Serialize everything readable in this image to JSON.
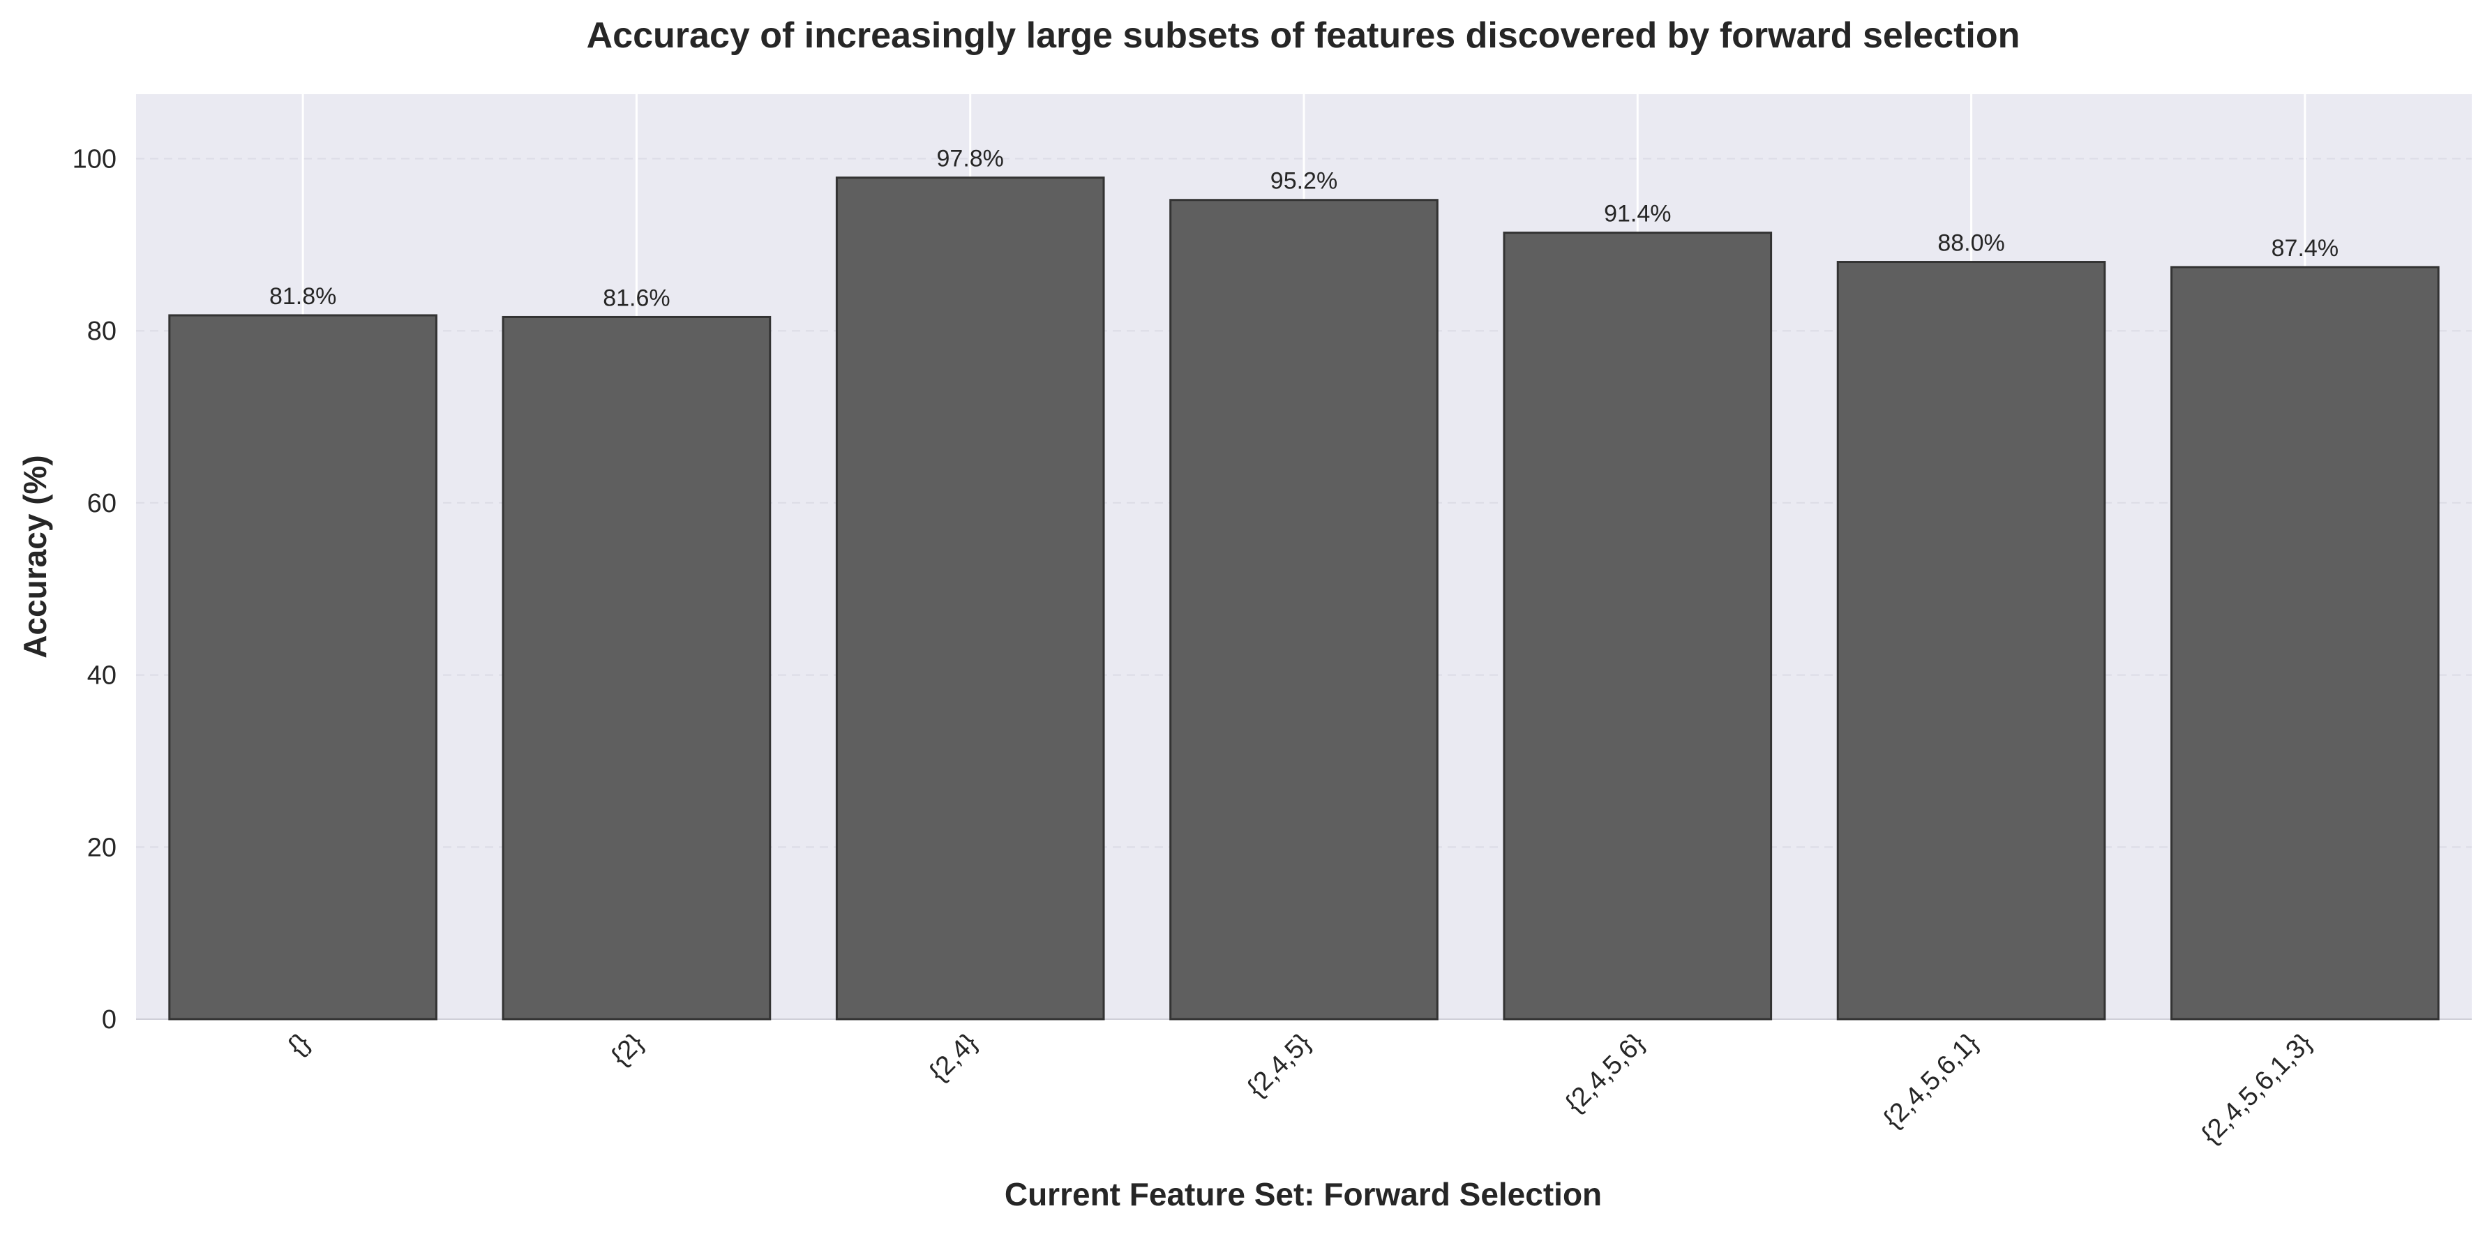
{
  "chart_data": {
    "type": "bar",
    "title": "Accuracy of increasingly large subsets of features discovered by forward selection",
    "xlabel": "Current Feature Set: Forward Selection",
    "ylabel": "Accuracy (%)",
    "categories": [
      "{}",
      "{2}",
      "{2,4}",
      "{2,4,5}",
      "{2,4,5,6}",
      "{2,4,5,6,1}",
      "{2,4,5,6,1,3}"
    ],
    "values": [
      81.8,
      81.6,
      97.8,
      95.2,
      91.4,
      88.0,
      87.4
    ],
    "data_labels": [
      "81.8%",
      "81.6%",
      "97.8%",
      "95.2%",
      "91.4%",
      "88.0%",
      "87.4%"
    ],
    "ylim": [
      0,
      107.5
    ],
    "yticks": [
      0,
      20,
      40,
      60,
      80,
      100
    ],
    "grid": true,
    "colors": {
      "bar_fill": "#5f5f5f",
      "bar_edge": "#333333",
      "plot_background": "#eaeaf2",
      "vertical_grid": "#ffffff",
      "horizontal_grid": "#dcdce6",
      "text": "#262626"
    }
  }
}
